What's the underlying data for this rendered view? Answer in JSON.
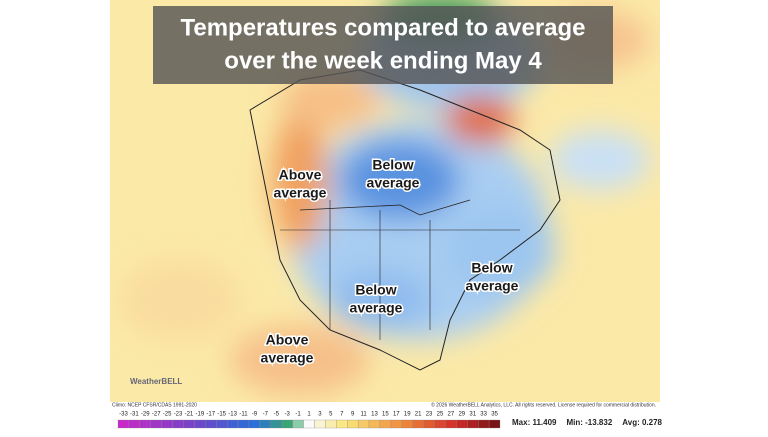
{
  "title": [
    "Temperatures compared to average",
    "over the week ending May 4"
  ],
  "labels": [
    {
      "lines": [
        "Above",
        "average"
      ]
    },
    {
      "lines": [
        "Below",
        "average"
      ]
    },
    {
      "lines": [
        "Below",
        "average"
      ]
    },
    {
      "lines": [
        "Below",
        "average"
      ]
    },
    {
      "lines": [
        "Above",
        "average"
      ]
    }
  ],
  "credits": {
    "climo": "Climo: NCEP CFSR/CDAS 1991-2020",
    "copyright": "© 2026 WeatherBELL Analytics, LLC. All rights reserved. License required for commercial distribution.",
    "logo": "WeatherBELL"
  },
  "colorbar": {
    "ticks": [
      -33,
      -31,
      -29,
      -27,
      -25,
      -23,
      -21,
      -19,
      -17,
      -15,
      -13,
      -11,
      -9,
      -7,
      -5,
      -3,
      -1,
      1,
      3,
      5,
      7,
      9,
      11,
      13,
      15,
      17,
      19,
      21,
      23,
      25,
      27,
      29,
      31,
      33,
      35
    ]
  },
  "stats": [
    "Max: 11.409",
    "Min: -13.832",
    "Avg: 0.278"
  ]
}
